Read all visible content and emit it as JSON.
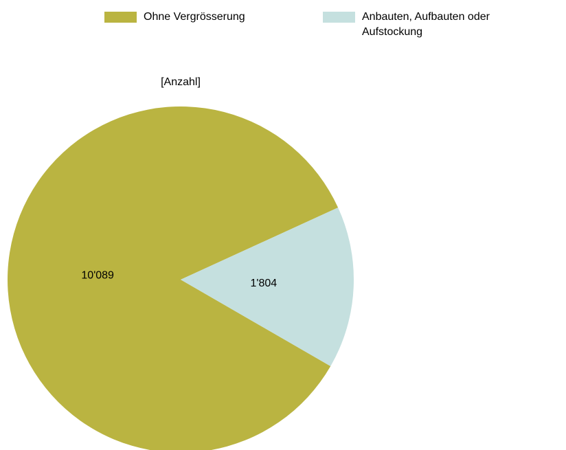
{
  "chart_data": {
    "type": "pie",
    "title": "[Anzahl]",
    "categories": [
      "Ohne Vergrösserung",
      "Anbauten, Aufbauten oder Aufstockung"
    ],
    "values": [
      10089,
      1804
    ],
    "value_labels": [
      "10'089",
      "1'804"
    ],
    "colors": [
      "#bab441",
      "#c5e0df"
    ]
  }
}
